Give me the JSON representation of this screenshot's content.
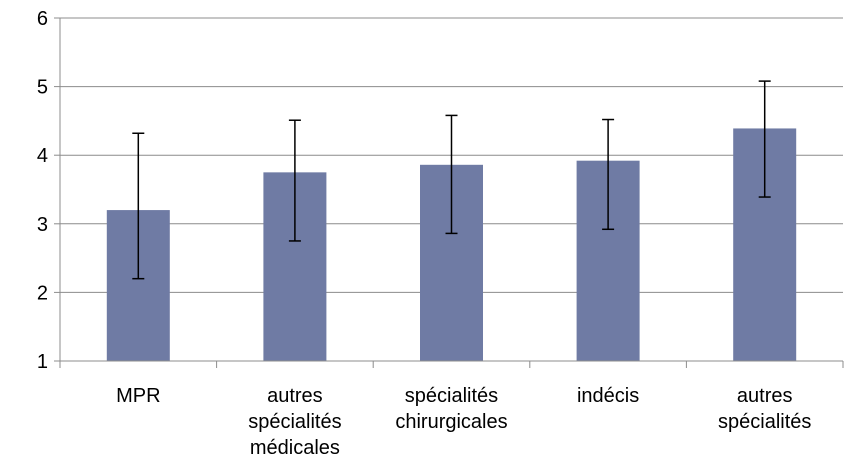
{
  "chart_data": {
    "type": "bar",
    "title": "",
    "xlabel": "",
    "ylabel": "",
    "ylim": [
      1,
      6
    ],
    "yticks": [
      1,
      2,
      3,
      4,
      5,
      6
    ],
    "grid": true,
    "legend": "none",
    "bar_color": "#6f7ba4",
    "categories": [
      [
        "MPR"
      ],
      [
        "autres",
        "spécialités",
        "médicales"
      ],
      [
        "spécialités",
        "chirurgicales"
      ],
      [
        "indécis"
      ],
      [
        "autres",
        "spécialités"
      ]
    ],
    "values": [
      3.2,
      3.75,
      3.86,
      3.92,
      4.39
    ],
    "error_low": [
      2.2,
      2.75,
      2.86,
      2.92,
      3.39
    ],
    "error_high": [
      4.32,
      4.51,
      4.58,
      4.52,
      5.08
    ]
  }
}
